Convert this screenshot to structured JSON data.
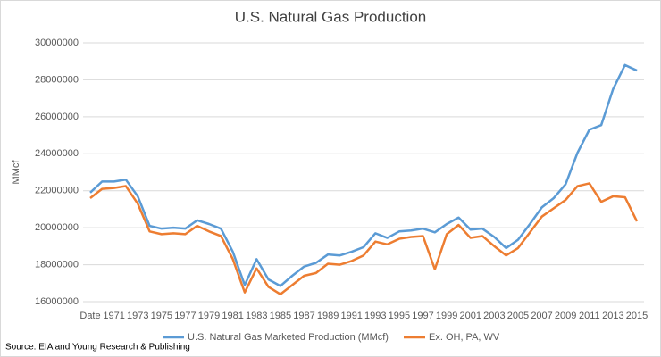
{
  "chart_data": {
    "type": "line",
    "title": "U.S. Natural Gas Production",
    "ylabel": "MMcf",
    "source": "Source: EIA and Young Research & Publishing",
    "categories": [
      "Date",
      null,
      "1971",
      null,
      "1973",
      null,
      "1975",
      null,
      "1977",
      null,
      "1979",
      null,
      "1981",
      null,
      "1983",
      null,
      "1985",
      null,
      "1987",
      null,
      "1989",
      null,
      "1991",
      null,
      "1993",
      null,
      "1995",
      null,
      "1997",
      null,
      "1999",
      null,
      "2001",
      null,
      "2003",
      null,
      "2005",
      null,
      "2007",
      null,
      "2009",
      null,
      "2011",
      null,
      "2013",
      null,
      "2015"
    ],
    "series": [
      {
        "name": "U.S. Natural Gas Marketed Production (MMcf)",
        "color": "#5b9bd5",
        "values": [
          21900000,
          22500000,
          22500000,
          22600000,
          21700000,
          20100000,
          19950000,
          20000000,
          19950000,
          20400000,
          20200000,
          19950000,
          18700000,
          16900000,
          18300000,
          17200000,
          16850000,
          17400000,
          17900000,
          18100000,
          18550000,
          18500000,
          18700000,
          18950000,
          19700000,
          19450000,
          19800000,
          19850000,
          19950000,
          19750000,
          20200000,
          20550000,
          19900000,
          19950000,
          19500000,
          18900000,
          19350000,
          20200000,
          21100000,
          21600000,
          22350000,
          24050000,
          25300000,
          25550000,
          27500000,
          28800000,
          28500000
        ]
      },
      {
        "name": "Ex. OH, PA, WV",
        "color": "#ed7d31",
        "values": [
          21600000,
          22100000,
          22150000,
          22250000,
          21300000,
          19800000,
          19650000,
          19700000,
          19650000,
          20100000,
          19800000,
          19550000,
          18300000,
          16500000,
          17800000,
          16800000,
          16400000,
          16900000,
          17400000,
          17550000,
          18050000,
          18000000,
          18200000,
          18500000,
          19250000,
          19100000,
          19400000,
          19500000,
          19550000,
          17750000,
          19650000,
          20150000,
          19450000,
          19550000,
          19000000,
          18500000,
          18900000,
          19750000,
          20600000,
          21050000,
          21500000,
          22250000,
          22400000,
          21400000,
          21700000,
          21650000,
          20350000
        ]
      }
    ],
    "ylim": [
      16000000,
      30000000
    ],
    "yticks": [
      16000000,
      18000000,
      20000000,
      22000000,
      24000000,
      26000000,
      28000000,
      30000000
    ],
    "grid": true,
    "legend": "bottom"
  }
}
